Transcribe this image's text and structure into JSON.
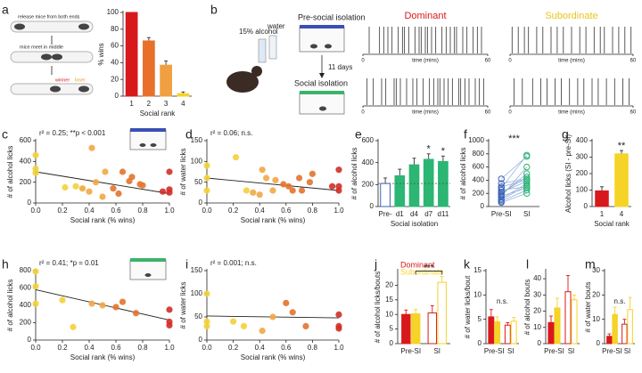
{
  "chart_data": [
    {
      "type": "bar",
      "panel": "a",
      "categories": [
        "1",
        "2",
        "3",
        "4"
      ],
      "values": [
        100,
        66,
        37,
        3
      ],
      "errors": [
        0,
        4,
        5,
        2
      ],
      "colors": [
        "#d7191c",
        "#e8702a",
        "#f0a040",
        "#f5d327"
      ],
      "filled": [
        true,
        true,
        true,
        true
      ],
      "ylabel": "% wins",
      "xlabel": "Social rank",
      "ylim": [
        0,
        100
      ],
      "yticks": [
        0,
        20,
        40,
        60,
        80,
        100
      ]
    },
    {
      "type": "raster",
      "panel": "b",
      "xlabel": "time (mins)",
      "xlim": [
        0,
        60
      ],
      "xticks": [
        0,
        60
      ],
      "columns": [
        {
          "title": "Dominant",
          "color": "#d7191c",
          "rows": [
            [
              3,
              8,
              10,
              12,
              14,
              17,
              19,
              20,
              22,
              25,
              27,
              28,
              30,
              31,
              33,
              35,
              38,
              40,
              42,
              44,
              45,
              48,
              50,
              53,
              55,
              57
            ],
            [
              2,
              5,
              9,
              11,
              15,
              16,
              18,
              21,
              24,
              26,
              29,
              32,
              34,
              36,
              37,
              39,
              41,
              43,
              46,
              47,
              49,
              51,
              54,
              56,
              58
            ]
          ]
        },
        {
          "title": "Subordinate",
          "color": "#e6c619",
          "rows": [
            [
              1,
              4,
              7,
              9,
              13,
              16,
              20,
              23,
              26,
              30,
              34,
              37,
              41,
              44,
              46,
              50,
              53,
              56,
              59
            ],
            [
              2,
              6,
              11,
              15,
              18,
              22,
              25,
              29,
              33,
              36,
              40,
              43,
              47,
              51,
              55,
              58
            ]
          ]
        }
      ]
    },
    {
      "type": "scatter",
      "panel": "c",
      "annotation": "r² = 0.25; **p < 0.001",
      "x": [
        0,
        0,
        0,
        0.22,
        0.3,
        0.35,
        0.4,
        0.42,
        0.45,
        0.5,
        0.52,
        0.58,
        0.62,
        0.65,
        0.7,
        0.72,
        0.78,
        0.8,
        0.95,
        1,
        1,
        1
      ],
      "y": [
        460,
        330,
        290,
        150,
        160,
        140,
        110,
        530,
        200,
        60,
        300,
        140,
        90,
        300,
        210,
        250,
        180,
        170,
        110,
        300,
        130,
        100
      ],
      "colors": [
        "#f2d13a",
        "#f2d13a",
        "#f2d13a",
        "#f2d13a",
        "#f2d13a",
        "#efa844",
        "#efa844",
        "#efa844",
        "#efa844",
        "#efa844",
        "#efa844",
        "#e2742e",
        "#e2742e",
        "#e2742e",
        "#e2742e",
        "#e2742e",
        "#e2742e",
        "#e2742e",
        "#d22f27",
        "#d22f27",
        "#d22f27",
        "#d22f27"
      ],
      "trendline": {
        "x": [
          0,
          1
        ],
        "y": [
          300,
          90
        ]
      },
      "ylabel": "# of alcohol licks",
      "xlabel": "Social rank (% wins)",
      "xlim": [
        0,
        1
      ],
      "xticks": [
        {
          "value": 0,
          "label": "0.0"
        },
        {
          "value": 0.2,
          "label": "0.2"
        },
        {
          "value": 0.4,
          "label": "0.4"
        },
        {
          "value": 0.6,
          "label": "0.6"
        },
        {
          "value": 0.8,
          "label": "0.8"
        },
        {
          "value": 1,
          "label": "1.0"
        }
      ],
      "ylim": [
        0,
        600
      ],
      "yticks": [
        0,
        200,
        400,
        600
      ]
    },
    {
      "type": "scatter",
      "panel": "d",
      "annotation": "r² = 0.06; n.s.",
      "x": [
        0,
        0,
        0,
        0.22,
        0.3,
        0.35,
        0.4,
        0.42,
        0.45,
        0.5,
        0.52,
        0.58,
        0.62,
        0.65,
        0.7,
        0.72,
        0.78,
        0.8,
        0.95,
        1,
        1,
        1
      ],
      "y": [
        90,
        60,
        30,
        110,
        30,
        25,
        20,
        80,
        60,
        30,
        55,
        45,
        40,
        30,
        60,
        30,
        50,
        70,
        40,
        80,
        30,
        40
      ],
      "colors": [
        "#f2d13a",
        "#f2d13a",
        "#f2d13a",
        "#f2d13a",
        "#f2d13a",
        "#efa844",
        "#efa844",
        "#efa844",
        "#efa844",
        "#efa844",
        "#efa844",
        "#e2742e",
        "#e2742e",
        "#e2742e",
        "#e2742e",
        "#e2742e",
        "#e2742e",
        "#e2742e",
        "#d22f27",
        "#d22f27",
        "#d22f27",
        "#d22f27"
      ],
      "trendline": {
        "x": [
          0,
          1
        ],
        "y": [
          60,
          30
        ]
      },
      "ylabel": "# of water licks",
      "xlabel": "Social rank (% wins)",
      "xlim": [
        0,
        1
      ],
      "xticks": [
        {
          "value": 0,
          "label": "0.0"
        },
        {
          "value": 0.2,
          "label": "0.2"
        },
        {
          "value": 0.4,
          "label": "0.4"
        },
        {
          "value": 0.6,
          "label": "0.6"
        },
        {
          "value": 0.8,
          "label": "0.8"
        },
        {
          "value": 1,
          "label": "1.0"
        }
      ],
      "ylim": [
        0,
        150
      ],
      "yticks": [
        0,
        50,
        100,
        150
      ]
    },
    {
      "type": "bar",
      "panel": "e",
      "categories": [
        "Pre-",
        "d1",
        "d4",
        "d7",
        "d11"
      ],
      "values": [
        210,
        280,
        380,
        430,
        410
      ],
      "errors": [
        50,
        60,
        60,
        50,
        50
      ],
      "colors": [
        "#3b63b5",
        "#2bb673",
        "#2bb673",
        "#2bb673",
        "#2bb673"
      ],
      "filled": [
        false,
        true,
        true,
        true,
        true
      ],
      "significance": [
        null,
        null,
        null,
        "*",
        "*"
      ],
      "dashed_reference": true,
      "ylabel": "# of alcohol licks",
      "xlabel": "Social isolation",
      "ylim": [
        0,
        600
      ],
      "yticks": [
        0,
        200,
        400,
        600
      ]
    },
    {
      "type": "paired",
      "panel": "f",
      "categories": [
        "Pre-SI",
        "SI"
      ],
      "annotation": "***",
      "colors": [
        "#3b63b5",
        "#2bb673"
      ],
      "values": [
        [
          280,
          780
        ],
        [
          120,
          350
        ],
        [
          200,
          450
        ],
        [
          300,
          400
        ],
        [
          150,
          600
        ],
        [
          80,
          250
        ],
        [
          350,
          420
        ],
        [
          250,
          300
        ],
        [
          180,
          500
        ],
        [
          100,
          320
        ],
        [
          60,
          200
        ],
        [
          420,
          760
        ],
        [
          220,
          380
        ],
        [
          160,
          280
        ]
      ],
      "ylabel": "# of alcohol licks",
      "ylim": [
        0,
        1000
      ],
      "yticks": [
        0,
        200,
        400,
        600,
        800,
        1000
      ]
    },
    {
      "type": "bar",
      "panel": "g",
      "categories": [
        "1",
        "4"
      ],
      "values": [
        95,
        320
      ],
      "errors": [
        25,
        20
      ],
      "colors": [
        "#d7191c",
        "#f5d327"
      ],
      "filled": [
        true,
        true
      ],
      "significance": [
        null,
        "**"
      ],
      "ylabel": "Alcohol licks (SI - pre-SI)",
      "xlabel": "Social rank",
      "ylim": [
        0,
        400
      ],
      "yticks": [
        0,
        100,
        200,
        300,
        400
      ]
    },
    {
      "type": "scatter",
      "panel": "h",
      "annotation": "r² = 0.41; *p = 0.01",
      "x": [
        0,
        0,
        0,
        0.2,
        0.28,
        0.42,
        0.5,
        0.6,
        0.65,
        0.75,
        1,
        1,
        1
      ],
      "y": [
        790,
        620,
        420,
        460,
        150,
        420,
        400,
        380,
        440,
        310,
        350,
        210,
        170
      ],
      "colors": [
        "#f2d13a",
        "#f2d13a",
        "#f2d13a",
        "#f2d13a",
        "#f2d13a",
        "#efa844",
        "#efa844",
        "#e2742e",
        "#e2742e",
        "#e2742e",
        "#d22f27",
        "#d22f27",
        "#d22f27"
      ],
      "trendline": {
        "x": [
          0,
          1
        ],
        "y": [
          580,
          230
        ]
      },
      "ylabel": "# of alcohol licks",
      "xlabel": "Social rank (% wins)",
      "xlim": [
        0,
        1
      ],
      "xticks": [
        {
          "value": 0,
          "label": "0.0"
        },
        {
          "value": 0.2,
          "label": "0.2"
        },
        {
          "value": 0.4,
          "label": "0.4"
        },
        {
          "value": 0.6,
          "label": "0.6"
        },
        {
          "value": 0.8,
          "label": "0.8"
        },
        {
          "value": 1,
          "label": "1.0"
        }
      ],
      "ylim": [
        0,
        800
      ],
      "yticks": [
        0,
        200,
        400,
        600,
        800
      ]
    },
    {
      "type": "scatter",
      "panel": "i",
      "annotation": "r² = 0.001; n.s.",
      "x": [
        0,
        0,
        0,
        0.2,
        0.28,
        0.42,
        0.5,
        0.6,
        0.65,
        0.75,
        1,
        1,
        1
      ],
      "y": [
        100,
        30,
        40,
        40,
        30,
        20,
        50,
        80,
        60,
        30,
        30,
        25,
        55
      ],
      "colors": [
        "#f2d13a",
        "#f2d13a",
        "#f2d13a",
        "#f2d13a",
        "#f2d13a",
        "#efa844",
        "#efa844",
        "#e2742e",
        "#e2742e",
        "#e2742e",
        "#d22f27",
        "#d22f27",
        "#d22f27"
      ],
      "trendline": {
        "x": [
          0,
          1
        ],
        "y": [
          52,
          48
        ]
      },
      "ylabel": "# of water licks",
      "xlabel": "Social rank (% wins)",
      "xlim": [
        0,
        1
      ],
      "xticks": [
        {
          "value": 0,
          "label": "0.0"
        },
        {
          "value": 0.2,
          "label": "0.2"
        },
        {
          "value": 0.4,
          "label": "0.4"
        },
        {
          "value": 0.6,
          "label": "0.6"
        },
        {
          "value": 0.8,
          "label": "0.8"
        },
        {
          "value": 1,
          "label": "1.0"
        }
      ],
      "ylim": [
        0,
        150
      ],
      "yticks": [
        0,
        50,
        100,
        150
      ]
    },
    {
      "type": "grouped_bar",
      "panel": "j",
      "categories": [
        "Pre-SI",
        "SI"
      ],
      "filled": [
        true,
        false
      ],
      "annotation": "***",
      "bracket": true,
      "series": [
        {
          "name": "Dominant",
          "color": "#d7191c",
          "values": [
            10,
            10.5
          ],
          "errors": [
            1.5,
            2.5
          ]
        },
        {
          "name": "Subordinate",
          "color": "#f5d327",
          "values": [
            10.2,
            21
          ],
          "errors": [
            1.5,
            2
          ]
        }
      ],
      "ylabel": "# of alcohol licks/bouts",
      "ylim": [
        0,
        25
      ],
      "yticks": [
        0,
        5,
        10,
        15,
        20
      ]
    },
    {
      "type": "grouped_bar",
      "panel": "k",
      "categories": [
        "Pre-SI",
        "SI"
      ],
      "filled": [
        true,
        false
      ],
      "annotation": "n.s.",
      "series": [
        {
          "color": "#d7191c",
          "values": [
            5.5,
            3.8
          ],
          "errors": [
            1.5,
            0.5
          ]
        },
        {
          "color": "#f5d327",
          "values": [
            4.5,
            4.6
          ],
          "errors": [
            1,
            0.8
          ]
        }
      ],
      "ylabel": "# of water licks/bout",
      "ylim": [
        0,
        15
      ],
      "yticks": [
        0,
        5,
        10,
        15
      ]
    },
    {
      "type": "grouped_bar",
      "panel": "l",
      "categories": [
        "Pre-SI",
        "SI"
      ],
      "filled": [
        true,
        false
      ],
      "series": [
        {
          "color": "#d7191c",
          "values": [
            13,
            32
          ],
          "errors": [
            4,
            10
          ]
        },
        {
          "color": "#f5d327",
          "values": [
            22,
            27
          ],
          "errors": [
            6,
            3
          ]
        }
      ],
      "ylabel": "# of alcohol bouts",
      "ylim": [
        0,
        45
      ],
      "yticks": [
        0,
        10,
        20,
        30,
        40
      ]
    },
    {
      "type": "grouped_bar",
      "panel": "m",
      "categories": [
        "Pre-SI",
        "SI"
      ],
      "filled": [
        true,
        false
      ],
      "annotation": "n.s.",
      "series": [
        {
          "color": "#d7191c",
          "values": [
            3,
            8
          ],
          "errors": [
            1,
            2
          ]
        },
        {
          "color": "#f5d327",
          "values": [
            12,
            14
          ],
          "errors": [
            3,
            5
          ]
        }
      ],
      "ylabel": "# of water bouts",
      "ylim": [
        0,
        30
      ],
      "yticks": [
        0,
        10,
        20,
        30
      ]
    }
  ],
  "diagram_a": {
    "step1": "release mice from both ends",
    "step2": "mice meet in middle",
    "winner": "winner",
    "loser": "loser"
  },
  "diagram_b": {
    "alcohol": "15% alcohol",
    "water": "water",
    "pre": "Pre-social isolation",
    "duration": "11 days",
    "post": "Social isolation"
  }
}
